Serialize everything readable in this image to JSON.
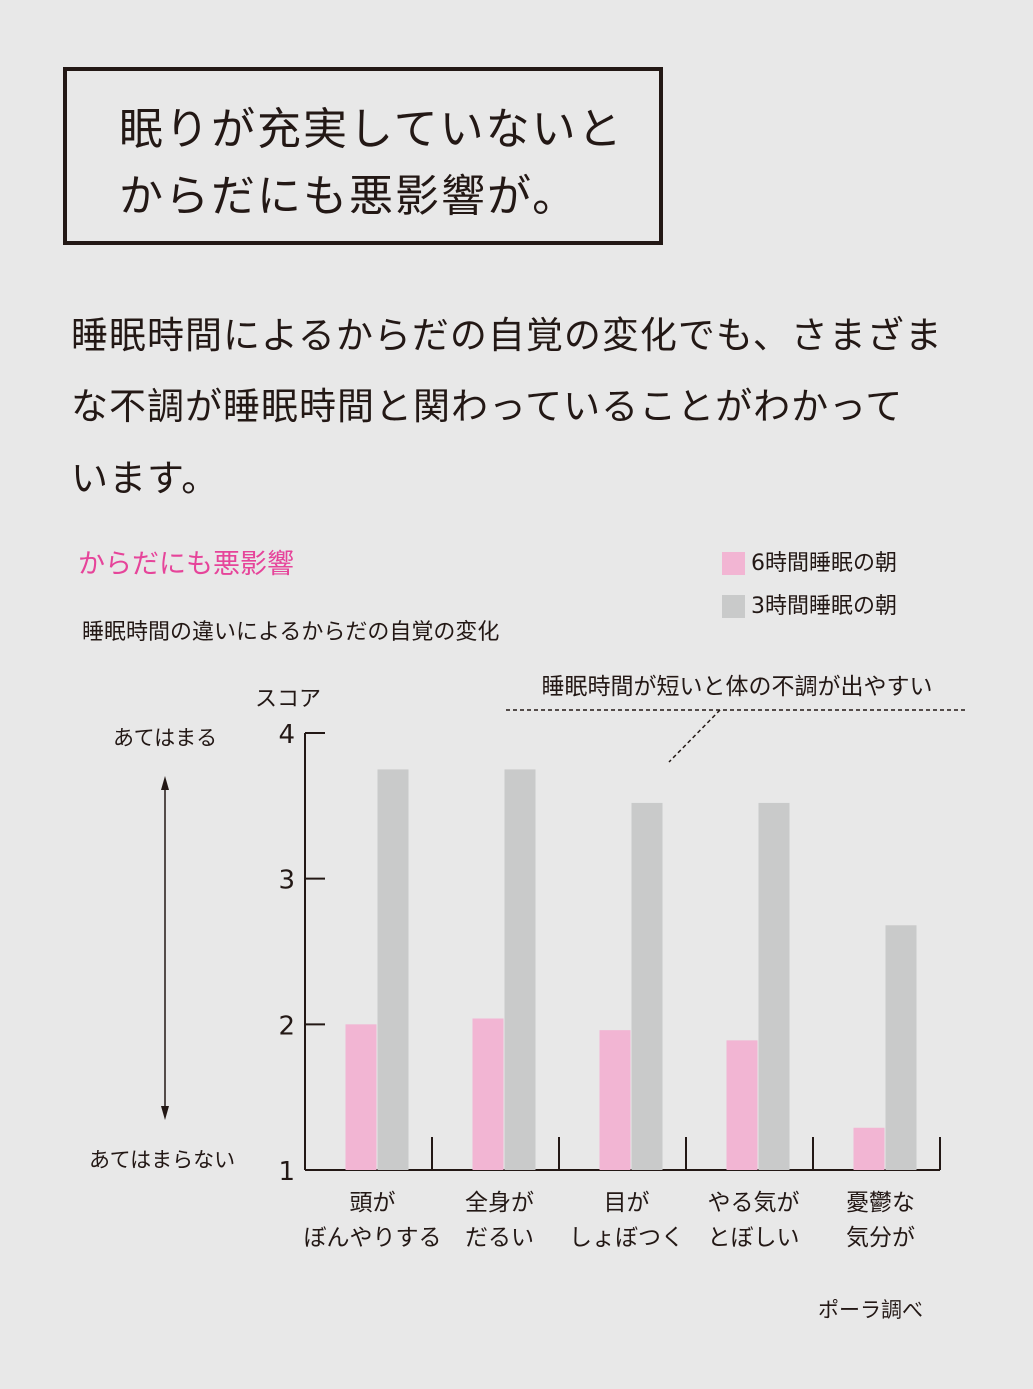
{
  "headline": {
    "line1": "眠りが充実していないと",
    "line2": "からだにも悪影響が。"
  },
  "body": {
    "line1": "睡眠時間によるからだの自覚の変化でも、さまざま",
    "line2": "な不調が睡眠時間と関わっていることがわかって",
    "line3": "います。"
  },
  "chart_heading": "からだにも悪影響",
  "legend": {
    "series1": "6時間睡眠の朝",
    "series2": "3時間睡眠の朝"
  },
  "side_labels": {
    "top": "あてはまる",
    "bottom": "あてはまらない"
  },
  "source": "ポーラ調べ",
  "colors": {
    "series1": "#f2b5d3",
    "series2": "#c9caca",
    "accent": "#e6449a",
    "ink": "#231815",
    "background": "#e8e8e8"
  },
  "chart_data": {
    "type": "bar",
    "title": "睡眠時間の違いによるからだの自覚の変化",
    "ylabel": "スコア",
    "ylim": [
      1,
      4
    ],
    "yticks": [
      "1",
      "2",
      "3",
      "4"
    ],
    "categories": [
      [
        "頭が",
        "ぼんやりする"
      ],
      [
        "全身が",
        "だるい"
      ],
      [
        "目が",
        "しょぼつく"
      ],
      [
        "やる気が",
        "とぼしい"
      ],
      [
        "憂鬱な",
        "気分が"
      ]
    ],
    "series": [
      {
        "name": "6時間睡眠の朝",
        "values": [
          2.0,
          2.04,
          1.96,
          1.89,
          1.29
        ]
      },
      {
        "name": "3時間睡眠の朝",
        "values": [
          3.75,
          3.75,
          3.52,
          3.52,
          2.68
        ]
      }
    ],
    "annotation": "睡眠時間が短いと体の不調が出やすい",
    "grid": false,
    "legend_position": "top-right"
  }
}
